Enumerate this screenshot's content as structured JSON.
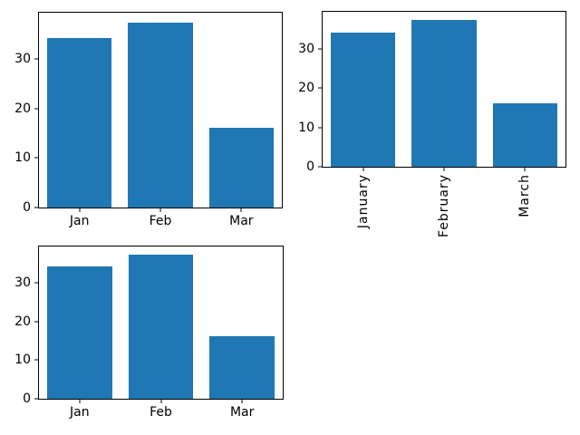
{
  "figure": {
    "background": "#ffffff",
    "bar_color": "#1f77b4",
    "spine_color": "#000000",
    "text_color": "#000000"
  },
  "chart_data": [
    {
      "id": "top-left",
      "type": "bar",
      "title": "",
      "xlabel": "",
      "ylabel": "",
      "categories": [
        "Jan",
        "Feb",
        "Mar"
      ],
      "values": [
        34.2,
        37.4,
        16.1
      ],
      "yticks": [
        0,
        10,
        20,
        30
      ],
      "ylim": [
        0,
        39.4
      ],
      "xtick_rotation": 0,
      "bar_width_fraction": 0.8,
      "grid": false,
      "legend": false
    },
    {
      "id": "top-right",
      "type": "bar",
      "title": "",
      "xlabel": "",
      "ylabel": "",
      "categories": [
        "January",
        "February",
        "March"
      ],
      "values": [
        34.2,
        37.4,
        16.1
      ],
      "yticks": [
        0,
        10,
        20,
        30
      ],
      "ylim": [
        0,
        39.4
      ],
      "xtick_rotation": 90,
      "bar_width_fraction": 0.8,
      "grid": false,
      "legend": false
    },
    {
      "id": "bottom-left",
      "type": "bar",
      "title": "",
      "xlabel": "",
      "ylabel": "",
      "categories": [
        "Jan",
        "Feb",
        "Mar"
      ],
      "values": [
        34.2,
        37.4,
        16.1
      ],
      "yticks": [
        0,
        10,
        20,
        30
      ],
      "ylim": [
        0,
        39.4
      ],
      "xtick_rotation": 0,
      "bar_width_fraction": 0.8,
      "grid": false,
      "legend": false
    }
  ]
}
